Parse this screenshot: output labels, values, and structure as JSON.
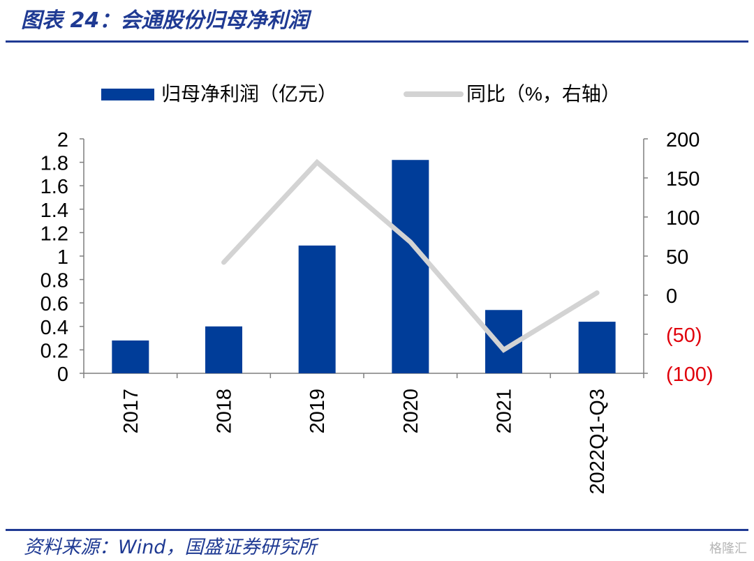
{
  "header": {
    "title": "图表 24：会通股份归母净利润"
  },
  "footer": {
    "source": "资料来源：Wind，国盛证券研究所",
    "watermark": "格隆汇"
  },
  "colors": {
    "bar": "#003D99",
    "line": "#D3D3D3",
    "negative_tick": "#E0000B",
    "axis": "#7F7F7F",
    "title": "#1F3A93"
  },
  "chart_data": {
    "type": "bar",
    "categories": [
      "2017",
      "2018",
      "2019",
      "2020",
      "2021",
      "2022Q1-Q3"
    ],
    "series": [
      {
        "name": "归母净利润（亿元）",
        "type": "bar",
        "axis": "left",
        "values": [
          0.28,
          0.4,
          1.09,
          1.82,
          0.54,
          0.44
        ]
      },
      {
        "name": "同比（%，右轴）",
        "type": "line",
        "axis": "right",
        "values": [
          null,
          42,
          170,
          68,
          -70,
          3
        ]
      }
    ],
    "y_left": {
      "ylim": [
        0,
        2
      ],
      "ticks": [
        "0",
        "0.2",
        "0.4",
        "0.6",
        "0.8",
        "1",
        "1.2",
        "1.4",
        "1.6",
        "1.8",
        "2"
      ]
    },
    "y_right": {
      "ylim": [
        -100,
        200
      ],
      "ticks": [
        "(100)",
        "(50)",
        "0",
        "50",
        "100",
        "150",
        "200"
      ]
    },
    "legend": {
      "position": "top"
    },
    "grid": false
  }
}
